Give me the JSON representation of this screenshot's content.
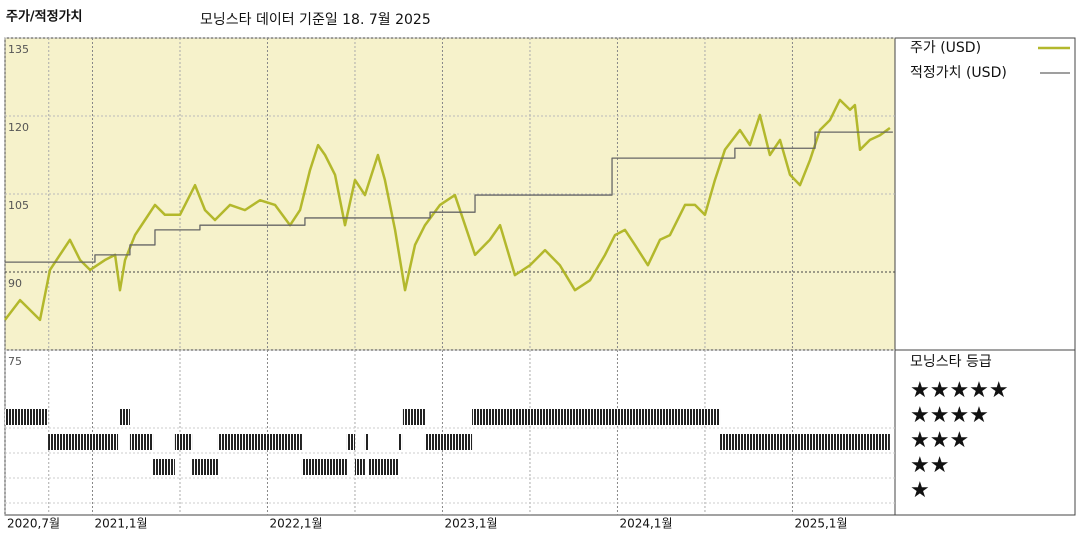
{
  "chart_data": {
    "type": "line",
    "title": "주가/적정가치",
    "subtitle": "모닝스타 데이터 기준일 18. 7월 2025",
    "xlim": [
      2020.5,
      2025.586
    ],
    "xticks": [
      {
        "value": 2020.5,
        "label": "2020,7월"
      },
      {
        "value": 2021,
        "label": "2021,1월"
      },
      {
        "value": 2022,
        "label": "2022,1월"
      },
      {
        "value": 2023,
        "label": "2023,1월"
      },
      {
        "value": 2024,
        "label": "2024,1월"
      },
      {
        "value": 2025,
        "label": "2025,1월"
      }
    ],
    "ylim": [
      75,
      135
    ],
    "yticks": [
      75,
      90,
      105,
      120,
      135
    ],
    "series": [
      {
        "name": "주가 (USD)",
        "color": "#b3b82c",
        "x": [
          2020.5,
          2020.586,
          2020.7,
          2020.757,
          2020.814,
          2020.871,
          2020.929,
          2020.986,
          2021.071,
          2021.129,
          2021.157,
          2021.186,
          2021.243,
          2021.3,
          2021.357,
          2021.414,
          2021.5,
          2021.586,
          2021.643,
          2021.7,
          2021.786,
          2021.871,
          2021.957,
          2022.043,
          2022.129,
          2022.186,
          2022.243,
          2022.289,
          2022.329,
          2022.386,
          2022.443,
          2022.5,
          2022.557,
          2022.631,
          2022.671,
          2022.729,
          2022.786,
          2022.843,
          2022.9,
          2022.986,
          2023.071,
          2023.129,
          2023.186,
          2023.271,
          2023.329,
          2023.414,
          2023.5,
          2023.586,
          2023.671,
          2023.757,
          2023.843,
          2023.929,
          2023.986,
          2024.043,
          2024.1,
          2024.174,
          2024.243,
          2024.3,
          2024.386,
          2024.443,
          2024.5,
          2024.557,
          2024.614,
          2024.7,
          2024.757,
          2024.814,
          2024.871,
          2024.929,
          2024.986,
          2025.043,
          2025.1,
          2025.157,
          2025.214,
          2025.271,
          2025.329,
          2025.357,
          2025.386,
          2025.443,
          2025.5,
          2025.557
        ],
        "values": [
          80.8,
          84.6,
          80.8,
          90.4,
          93.3,
          96.2,
          92.3,
          90.4,
          92.3,
          93.3,
          86.5,
          92.3,
          97.1,
          100,
          102.9,
          101,
          101,
          106.7,
          101.9,
          100,
          102.9,
          101.9,
          103.8,
          102.9,
          99,
          101.9,
          109.6,
          114.4,
          112.5,
          108.7,
          99,
          107.7,
          104.8,
          112.5,
          107.7,
          98.1,
          86.5,
          95.2,
          99,
          102.9,
          104.8,
          99,
          93.3,
          96.2,
          99,
          89.4,
          91.3,
          94.2,
          91.3,
          86.5,
          88.4,
          93.3,
          97.1,
          98.1,
          95.2,
          91.3,
          96.2,
          97.1,
          102.9,
          102.9,
          101,
          107.7,
          113.5,
          117.3,
          114.4,
          120.2,
          112.5,
          115.4,
          108.7,
          106.7,
          111.5,
          117.3,
          119.2,
          123.1,
          121.2,
          122.1,
          113.5,
          115.4,
          116.3,
          117.7
        ]
      },
      {
        "name": "적정가치 (USD)",
        "color": "#666666",
        "step": true,
        "x": [
          2020.5,
          2021.014,
          2021.214,
          2021.357,
          2021.614,
          2022.214,
          2022.929,
          2023.186,
          2023.969,
          2024.671,
          2025.129,
          2025.574
        ],
        "values": [
          91.9,
          93.3,
          95.2,
          98.1,
          99,
          100.4,
          101.5,
          104.8,
          111.9,
          113.8,
          116.9,
          116.9
        ]
      }
    ],
    "ratings": {
      "title": "모닝스타 등급",
      "levels": [
        5,
        4,
        3,
        2,
        1
      ],
      "labels": [
        "★★★★★",
        "★★★★",
        "★★★",
        "★★",
        "★"
      ],
      "segments": [
        {
          "start": 2020.5,
          "end": 2020.746,
          "rating": 4
        },
        {
          "start": 2020.746,
          "end": 2021.146,
          "rating": 3
        },
        {
          "start": 2021.157,
          "end": 2021.214,
          "rating": 4
        },
        {
          "start": 2021.214,
          "end": 2021.346,
          "rating": 3
        },
        {
          "start": 2021.346,
          "end": 2021.471,
          "rating": 2
        },
        {
          "start": 2021.471,
          "end": 2021.569,
          "rating": 3
        },
        {
          "start": 2021.569,
          "end": 2021.717,
          "rating": 2
        },
        {
          "start": 2021.717,
          "end": 2022.197,
          "rating": 3
        },
        {
          "start": 2022.197,
          "end": 2022.454,
          "rating": 2
        },
        {
          "start": 2022.454,
          "end": 2022.5,
          "rating": 3
        },
        {
          "start": 2022.5,
          "end": 2022.557,
          "rating": 2
        },
        {
          "start": 2022.557,
          "end": 2022.58,
          "rating": 3
        },
        {
          "start": 2022.58,
          "end": 2022.746,
          "rating": 2
        },
        {
          "start": 2022.746,
          "end": 2022.769,
          "rating": 3
        },
        {
          "start": 2022.774,
          "end": 2022.9,
          "rating": 4
        },
        {
          "start": 2022.9,
          "end": 2023.169,
          "rating": 3
        },
        {
          "start": 2023.169,
          "end": 2024.586,
          "rating": 4
        },
        {
          "start": 2024.586,
          "end": 2025.557,
          "rating": 3
        }
      ]
    }
  }
}
